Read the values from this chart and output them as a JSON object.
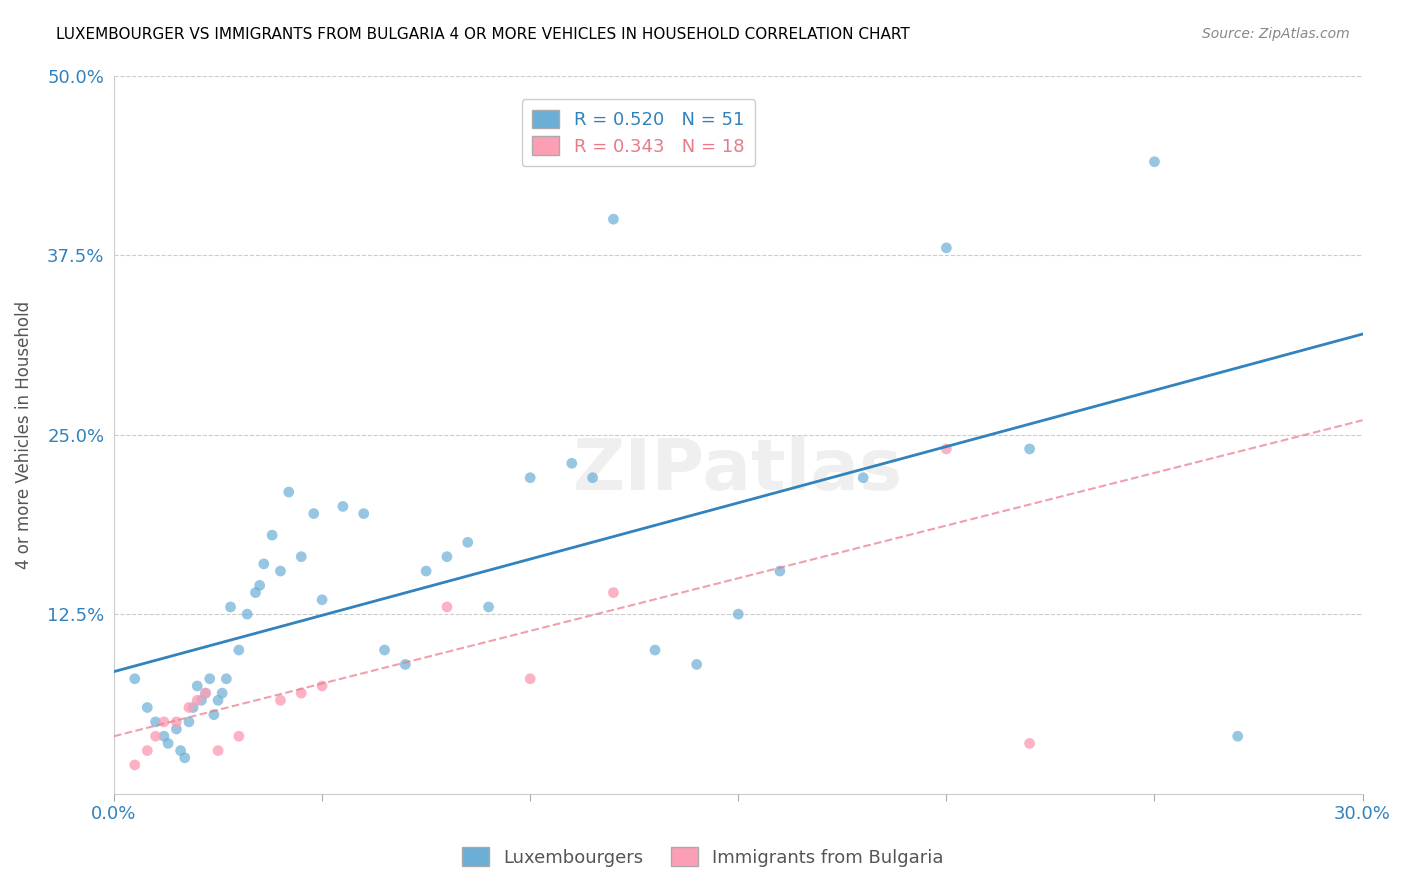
{
  "title": "LUXEMBOURGER VS IMMIGRANTS FROM BULGARIA 4 OR MORE VEHICLES IN HOUSEHOLD CORRELATION CHART",
  "source": "Source: ZipAtlas.com",
  "xlabel_bottom": "",
  "ylabel": "4 or more Vehicles in Household",
  "x_min": 0.0,
  "x_max": 0.3,
  "y_min": 0.0,
  "y_max": 0.5,
  "x_ticks": [
    0.0,
    0.05,
    0.1,
    0.15,
    0.2,
    0.25,
    0.3
  ],
  "x_tick_labels": [
    "0.0%",
    "",
    "",
    "",
    "",
    "",
    "30.0%"
  ],
  "y_ticks": [
    0.0,
    0.125,
    0.25,
    0.375,
    0.5
  ],
  "y_tick_labels": [
    "",
    "12.5%",
    "25.0%",
    "37.5%",
    "50.0%"
  ],
  "lux_R": 0.52,
  "lux_N": 51,
  "bul_R": 0.343,
  "bul_N": 18,
  "lux_color": "#6baed6",
  "bul_color": "#fc9fb5",
  "lux_line_color": "#3182bd",
  "bul_line_color": "#e87a8a",
  "watermark": "ZIPatlas",
  "legend_label_lux": "Luxembourgers",
  "legend_label_bul": "Immigrants from Bulgaria",
  "lux_scatter_x": [
    0.005,
    0.008,
    0.01,
    0.012,
    0.013,
    0.015,
    0.016,
    0.017,
    0.018,
    0.019,
    0.02,
    0.021,
    0.022,
    0.023,
    0.024,
    0.025,
    0.026,
    0.027,
    0.028,
    0.03,
    0.032,
    0.034,
    0.035,
    0.036,
    0.038,
    0.04,
    0.042,
    0.045,
    0.048,
    0.05,
    0.055,
    0.06,
    0.065,
    0.07,
    0.075,
    0.08,
    0.085,
    0.09,
    0.1,
    0.11,
    0.115,
    0.12,
    0.13,
    0.14,
    0.15,
    0.16,
    0.18,
    0.2,
    0.22,
    0.25,
    0.27
  ],
  "lux_scatter_y": [
    0.08,
    0.06,
    0.05,
    0.04,
    0.035,
    0.045,
    0.03,
    0.025,
    0.05,
    0.06,
    0.075,
    0.065,
    0.07,
    0.08,
    0.055,
    0.065,
    0.07,
    0.08,
    0.13,
    0.1,
    0.125,
    0.14,
    0.145,
    0.16,
    0.18,
    0.155,
    0.21,
    0.165,
    0.195,
    0.135,
    0.2,
    0.195,
    0.1,
    0.09,
    0.155,
    0.165,
    0.175,
    0.13,
    0.22,
    0.23,
    0.22,
    0.4,
    0.1,
    0.09,
    0.125,
    0.155,
    0.22,
    0.38,
    0.24,
    0.44,
    0.04
  ],
  "bul_scatter_x": [
    0.005,
    0.008,
    0.01,
    0.012,
    0.015,
    0.018,
    0.02,
    0.022,
    0.025,
    0.03,
    0.04,
    0.045,
    0.05,
    0.08,
    0.1,
    0.12,
    0.2,
    0.22
  ],
  "bul_scatter_y": [
    0.02,
    0.03,
    0.04,
    0.05,
    0.05,
    0.06,
    0.065,
    0.07,
    0.03,
    0.04,
    0.065,
    0.07,
    0.075,
    0.13,
    0.08,
    0.14,
    0.24,
    0.035
  ],
  "lux_line_x0": 0.0,
  "lux_line_y0": 0.085,
  "lux_line_x1": 0.3,
  "lux_line_y1": 0.32,
  "bul_line_x0": 0.0,
  "bul_line_y0": 0.04,
  "bul_line_x1": 0.3,
  "bul_line_y1": 0.26
}
